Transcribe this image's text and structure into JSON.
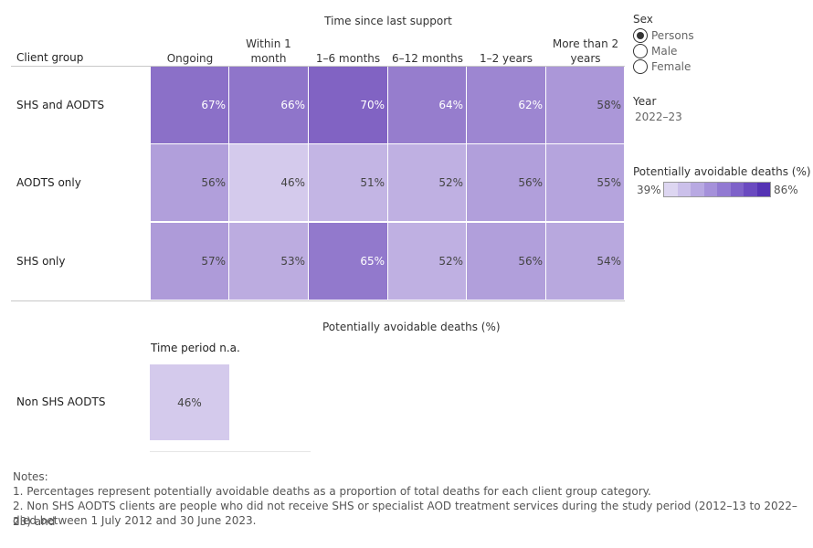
{
  "chart_data": {
    "type": "heatmap",
    "title": "Time since last support",
    "row_header": "Client group",
    "columns": [
      "Ongoing",
      "Within 1\nmonth",
      "1–6 months",
      "6–12 months",
      "1–2 years",
      "More than 2\nyears"
    ],
    "rows": [
      {
        "label": "SHS and AODTS",
        "values": [
          67,
          66,
          70,
          64,
          62,
          58
        ]
      },
      {
        "label": "AODTS only",
        "values": [
          56,
          46,
          51,
          52,
          56,
          55
        ]
      },
      {
        "label": "SHS only",
        "values": [
          57,
          53,
          65,
          52,
          56,
          54
        ]
      }
    ],
    "value_suffix": "%",
    "xlabel": "Potentially avoidable deaths (%)",
    "color_scale": {
      "min": 39,
      "max": 86,
      "min_color": "#ece8f8",
      "max_color": "#4a1fa8"
    },
    "secondary": {
      "column": "Time period n.a.",
      "row_label": "Non SHS AODTS",
      "value": 46
    }
  },
  "filters": {
    "sex_title": "Sex",
    "sex_options": [
      "Persons",
      "Male",
      "Female"
    ],
    "sex_selected": "Persons",
    "year_title": "Year",
    "year_value": "2022–23"
  },
  "legend": {
    "title": "Potentially avoidable deaths (%)",
    "min_label": "39%",
    "max_label": "86%",
    "colors": [
      "#ddd6f1",
      "#cbc0ea",
      "#b8a9e2",
      "#a591da",
      "#927ad2",
      "#7e62c9",
      "#6a4ac0",
      "#5533b4"
    ]
  },
  "notes": {
    "title": "Notes:",
    "lines": [
      "1. Percentages represent potentially avoidable deaths as a proportion of total deaths for each client group category.",
      "2. Non SHS AODTS clients are people who did not receive SHS or specialist AOD treatment services during the study period (2012–13 to 2022–23) and",
      "died between 1 July 2012 and 30 June 2023."
    ]
  }
}
